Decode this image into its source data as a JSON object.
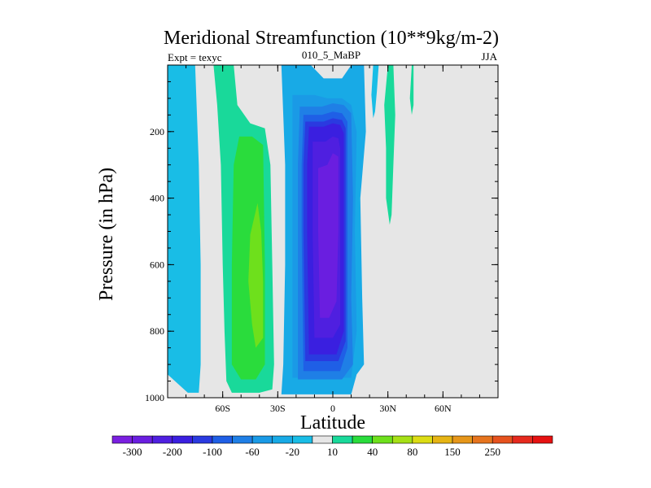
{
  "chart_data": {
    "type": "contour",
    "title": "Meridional Streamfunction (10**9kg/m-2)",
    "subtitle_left": "Expt = texyc",
    "subtitle_center": "010_5_MaBP",
    "subtitle_right": "JJA",
    "xlabel": "Latitude",
    "ylabel": "Pressure (in hPa)",
    "xlim": [
      -90,
      90
    ],
    "ylim": [
      0,
      1000
    ],
    "y_inverted": true,
    "x_ticks": [
      {
        "value": -60,
        "label": "60S"
      },
      {
        "value": -30,
        "label": "30S"
      },
      {
        "value": 0,
        "label": "0"
      },
      {
        "value": 30,
        "label": "30N"
      },
      {
        "value": 60,
        "label": "60N"
      }
    ],
    "y_ticks": [
      {
        "value": 200,
        "label": "200"
      },
      {
        "value": 400,
        "label": "400"
      },
      {
        "value": 600,
        "label": "600"
      },
      {
        "value": 800,
        "label": "800"
      },
      {
        "value": 1000,
        "label": "1000"
      }
    ],
    "background_color": "#e6e6e6",
    "colorbar": {
      "placement": "bottom",
      "colors": [
        "#7a1fe0",
        "#6a1ee0",
        "#4f1fe0",
        "#3a1fe0",
        "#2a3ae0",
        "#1f5fe6",
        "#1f7fe6",
        "#1a9ae6",
        "#18aae6",
        "#19bde6",
        "#e6e6e6",
        "#19d99a",
        "#2adc3c",
        "#6ee01c",
        "#a6e016",
        "#dcdc14",
        "#e6b414",
        "#e6961a",
        "#e6741e",
        "#e6521e",
        "#e62a1e",
        "#e61212"
      ],
      "labels": [
        "-300",
        "-200",
        "-100",
        "-60",
        "-20",
        "10",
        "40",
        "80",
        "150",
        "250"
      ],
      "label_boundaries": [
        1,
        3,
        5,
        7,
        9,
        11,
        13,
        15,
        17,
        19
      ]
    },
    "regions": [
      {
        "name": "west-blue-band",
        "level": -10,
        "color": "#19bde6",
        "points": [
          [
            -90,
            0
          ],
          [
            -75,
            0
          ],
          [
            -73,
            300
          ],
          [
            -72,
            600
          ],
          [
            -72,
            900
          ],
          [
            -73,
            985
          ],
          [
            -79,
            985
          ],
          [
            -84,
            960
          ],
          [
            -90,
            930
          ]
        ]
      },
      {
        "name": "south-green-band",
        "level": 10,
        "color": "#19d99a",
        "points": [
          [
            -65,
            0
          ],
          [
            -54,
            0
          ],
          [
            -52,
            120
          ],
          [
            -45,
            175
          ],
          [
            -37,
            190
          ],
          [
            -34,
            300
          ],
          [
            -33,
            600
          ],
          [
            -32,
            900
          ],
          [
            -33,
            975
          ],
          [
            -40,
            985
          ],
          [
            -55,
            985
          ],
          [
            -58,
            950
          ],
          [
            -59,
            800
          ],
          [
            -60,
            600
          ],
          [
            -61,
            300
          ],
          [
            -63,
            120
          ]
        ]
      },
      {
        "name": "south-green-core",
        "level": 30,
        "color": "#2adc3c",
        "points": [
          [
            -51,
            215
          ],
          [
            -44,
            215
          ],
          [
            -38,
            240
          ],
          [
            -37,
            600
          ],
          [
            -37,
            900
          ],
          [
            -42,
            945
          ],
          [
            -50,
            945
          ],
          [
            -55,
            900
          ],
          [
            -55,
            600
          ],
          [
            -54,
            300
          ]
        ]
      },
      {
        "name": "south-yellowgreen-core",
        "level": 60,
        "color": "#6ee01c",
        "points": [
          [
            -41,
            415
          ],
          [
            -39,
            500
          ],
          [
            -38,
            650
          ],
          [
            -38,
            820
          ],
          [
            -42,
            850
          ],
          [
            -44,
            780
          ],
          [
            -46,
            650
          ],
          [
            -45,
            510
          ]
        ]
      },
      {
        "name": "main-cell-outer",
        "level": -20,
        "color": "#18aae6",
        "points": [
          [
            -28,
            0
          ],
          [
            -26,
            -5
          ],
          [
            -20,
            0
          ],
          [
            -12,
            0
          ],
          [
            -5,
            40
          ],
          [
            5,
            40
          ],
          [
            10,
            0
          ],
          [
            17,
            0
          ],
          [
            18,
            200
          ],
          [
            15,
            400
          ],
          [
            16,
            700
          ],
          [
            17,
            900
          ],
          [
            13,
            930
          ],
          [
            10,
            990
          ],
          [
            -28,
            990
          ],
          [
            -27,
            900
          ],
          [
            -26,
            600
          ],
          [
            -26,
            300
          ],
          [
            -27,
            150
          ]
        ]
      },
      {
        "name": "main-cell-40",
        "level": -40,
        "color": "#1a9ae6",
        "points": [
          [
            -22,
            90
          ],
          [
            -10,
            90
          ],
          [
            -3,
            100
          ],
          [
            5,
            100
          ],
          [
            10,
            120
          ],
          [
            13,
            200
          ],
          [
            12,
            500
          ],
          [
            13,
            800
          ],
          [
            10,
            940
          ],
          [
            -22,
            940
          ],
          [
            -22,
            600
          ],
          [
            -22,
            300
          ]
        ]
      },
      {
        "name": "main-cell-60",
        "level": -60,
        "color": "#1f7fe6",
        "points": [
          [
            -18,
            125
          ],
          [
            -6,
            125
          ],
          [
            0,
            115
          ],
          [
            6,
            120
          ],
          [
            10,
            145
          ],
          [
            11,
            400
          ],
          [
            10,
            700
          ],
          [
            11,
            900
          ],
          [
            5,
            945
          ],
          [
            -19,
            945
          ],
          [
            -19,
            600
          ],
          [
            -19,
            300
          ]
        ]
      },
      {
        "name": "main-cell-80",
        "level": -80,
        "color": "#1f5fe6",
        "points": [
          [
            -16,
            150
          ],
          [
            -6,
            150
          ],
          [
            0,
            140
          ],
          [
            5,
            145
          ],
          [
            8,
            170
          ],
          [
            8,
            500
          ],
          [
            8,
            850
          ],
          [
            4,
            920
          ],
          [
            -16,
            920
          ],
          [
            -17,
            500
          ],
          [
            -17,
            300
          ]
        ]
      },
      {
        "name": "main-cell-100",
        "level": -100,
        "color": "#2a3ae0",
        "points": [
          [
            -15,
            170
          ],
          [
            -5,
            170
          ],
          [
            0,
            160
          ],
          [
            5,
            165
          ],
          [
            7,
            190
          ],
          [
            7,
            500
          ],
          [
            7,
            830
          ],
          [
            3,
            890
          ],
          [
            -15,
            890
          ],
          [
            -16,
            500
          ],
          [
            -16,
            300
          ]
        ]
      },
      {
        "name": "main-cell-150",
        "level": -150,
        "color": "#3a1fe0",
        "points": [
          [
            -13,
            185
          ],
          [
            -5,
            185
          ],
          [
            0,
            175
          ],
          [
            4,
            180
          ],
          [
            6,
            205
          ],
          [
            6,
            500
          ],
          [
            6,
            800
          ],
          [
            2,
            870
          ],
          [
            -13,
            870
          ],
          [
            -14,
            500
          ],
          [
            -14,
            300
          ]
        ]
      },
      {
        "name": "main-cell-200",
        "level": -200,
        "color": "#4f1fe0",
        "points": [
          [
            -11,
            230
          ],
          [
            -4,
            230
          ],
          [
            0,
            215
          ],
          [
            3,
            220
          ],
          [
            4,
            250
          ],
          [
            4,
            500
          ],
          [
            4,
            780
          ],
          [
            0,
            820
          ],
          [
            -10,
            820
          ],
          [
            -11,
            500
          ],
          [
            -11,
            300
          ]
        ]
      },
      {
        "name": "main-cell-250",
        "level": -250,
        "color": "#6a1ee0",
        "points": [
          [
            -8,
            310
          ],
          [
            -3,
            300
          ],
          [
            0,
            265
          ],
          [
            3,
            275
          ],
          [
            3,
            330
          ],
          [
            3,
            500
          ],
          [
            2,
            710
          ],
          [
            -2,
            760
          ],
          [
            -7,
            760
          ],
          [
            -8,
            500
          ]
        ]
      },
      {
        "name": "north-blue-strip",
        "level": -10,
        "color": "#19bde6",
        "points": [
          [
            22,
            0
          ],
          [
            25,
            0
          ],
          [
            24,
            80
          ],
          [
            23,
            140
          ],
          [
            22,
            160
          ],
          [
            21,
            90
          ]
        ]
      },
      {
        "name": "north-green-strip-a",
        "level": 10,
        "color": "#19d99a",
        "points": [
          [
            30,
            0
          ],
          [
            33,
            0
          ],
          [
            34,
            150
          ],
          [
            33,
            300
          ],
          [
            32,
            450
          ],
          [
            31,
            480
          ],
          [
            29,
            400
          ],
          [
            29,
            250
          ],
          [
            28,
            120
          ]
        ]
      },
      {
        "name": "north-green-strip-b",
        "level": 10,
        "color": "#19d99a",
        "points": [
          [
            43,
            0
          ],
          [
            44,
            0
          ],
          [
            44,
            120
          ],
          [
            43,
            150
          ],
          [
            42,
            100
          ]
        ]
      }
    ]
  }
}
